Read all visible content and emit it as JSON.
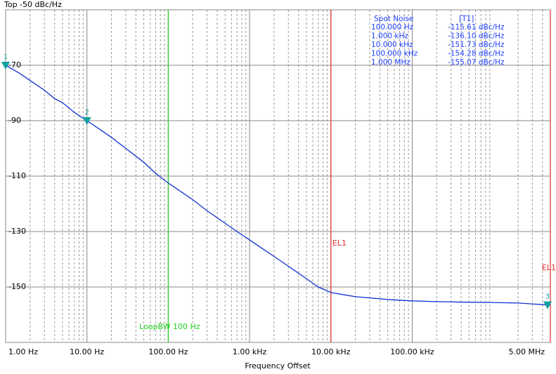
{
  "chart_data": {
    "type": "line",
    "title": "Top -50 dBc/Hz",
    "x_label": "Frequency Offset",
    "log_x": true,
    "grid": true,
    "xlim": [
      1,
      5000000
    ],
    "ylim": [
      -170,
      -50
    ],
    "yticks": [
      -70,
      -90,
      -110,
      -130,
      -150
    ],
    "xticks": [
      {
        "value": 1,
        "label": "1.00 Hz"
      },
      {
        "value": 10,
        "label": "10.00 Hz"
      },
      {
        "value": 100,
        "label": "100.00 Hz"
      },
      {
        "value": 1000,
        "label": "1.00 kHz"
      },
      {
        "value": 10000,
        "label": "10.00 kHz"
      },
      {
        "value": 100000,
        "label": "100.00 kHz"
      },
      {
        "value": 5000000,
        "label": "5.00 MHz"
      }
    ],
    "x": [
      1,
      1.5,
      2,
      3,
      4,
      5,
      7,
      10,
      15,
      20,
      30,
      50,
      70,
      100,
      150,
      200,
      300,
      500,
      700,
      1000,
      1500,
      2000,
      3000,
      5000,
      7000,
      10000,
      20000,
      50000,
      100000,
      200000,
      500000,
      1000000,
      2000000,
      5000000
    ],
    "series": [
      {
        "color": "#1030d0",
        "values": [
          -70,
          -73,
          -75.5,
          -79,
          -82,
          -83.5,
          -87,
          -90,
          -93.5,
          -96,
          -100,
          -105,
          -109,
          -112.5,
          -116,
          -118.5,
          -122.5,
          -127,
          -130,
          -133,
          -136.5,
          -139,
          -142.5,
          -147,
          -150,
          -152,
          -153.5,
          -154.5,
          -155,
          -155.3,
          -155.5,
          -155.6,
          -155.8,
          -156.5
        ]
      }
    ],
    "markers": [
      {
        "label": "1",
        "x": 1,
        "y": -70
      },
      {
        "label": "2",
        "x": 10,
        "y": -90
      },
      {
        "label": "3",
        "x": 5000000,
        "y": -156.5
      }
    ],
    "lines": [
      {
        "label": "LoopBW 100 Hz",
        "x": 100,
        "color": "#20d020"
      },
      {
        "label": "EL1",
        "x": 10000,
        "color": "#e03030"
      },
      {
        "label": "EL1",
        "x": 5000000,
        "color": "#e03030"
      }
    ],
    "spot_noise": {
      "title": "Spot Noise",
      "column": "[T1]",
      "rows": [
        [
          "100.000 Hz",
          "-115.61 dBc/Hz"
        ],
        [
          "1.000 kHz",
          "-136.10 dBc/Hz"
        ],
        [
          "10.000 kHz",
          "-151.73 dBc/Hz"
        ],
        [
          "100.000 kHz",
          "-154.28 dBc/Hz"
        ],
        [
          "1.000 MHz",
          "-155.07 dBc/Hz"
        ]
      ]
    }
  }
}
